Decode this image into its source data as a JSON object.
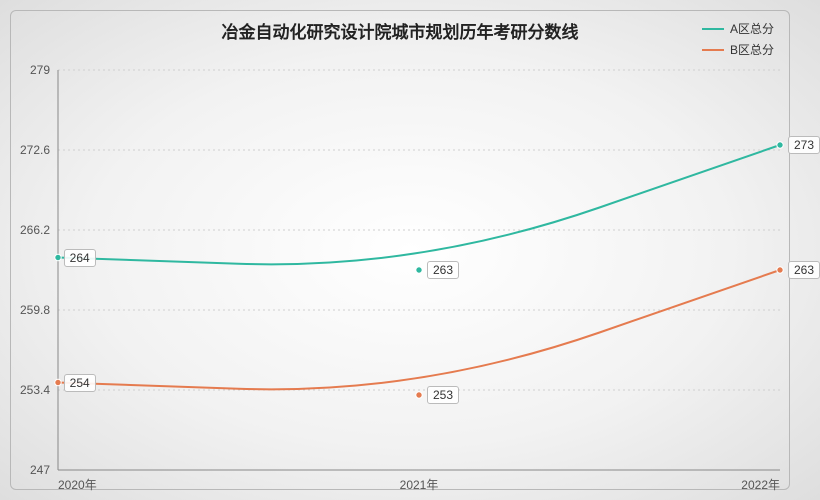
{
  "title": {
    "text": "冶金自动化研究设计院城市规划历年考研分数线",
    "fontsize": 17
  },
  "background": {
    "type": "radial",
    "inner": "#ffffff",
    "outer": "#dedede"
  },
  "border_color": "#b8b8b8",
  "legend": {
    "items": [
      {
        "label": "A区总分",
        "color": "#2fb8a0"
      },
      {
        "label": "B区总分",
        "color": "#e57b4f"
      }
    ],
    "fontsize": 12
  },
  "axes": {
    "y": {
      "min": 247,
      "max": 279,
      "ticks": [
        247,
        253.4,
        259.8,
        266.2,
        272.6,
        279
      ],
      "label_color": "#555",
      "label_fontsize": 12,
      "grid_color": "#cfcfcf",
      "axis_color": "#888"
    },
    "x": {
      "categories": [
        "2020年",
        "2021年",
        "2022年"
      ],
      "label_color": "#555",
      "label_fontsize": 12,
      "axis_color": "#888"
    }
  },
  "series": [
    {
      "name": "A区总分",
      "color": "#2fb8a0",
      "line_width": 2,
      "values": [
        264,
        263,
        273
      ],
      "smooth": true
    },
    {
      "name": "B区总分",
      "color": "#e57b4f",
      "line_width": 2,
      "values": [
        254,
        253,
        263
      ],
      "smooth": true
    }
  ],
  "point_label": {
    "background": "#ffffff",
    "border": "#bbbbbb",
    "fontsize": 12,
    "text_color": "#333333"
  }
}
